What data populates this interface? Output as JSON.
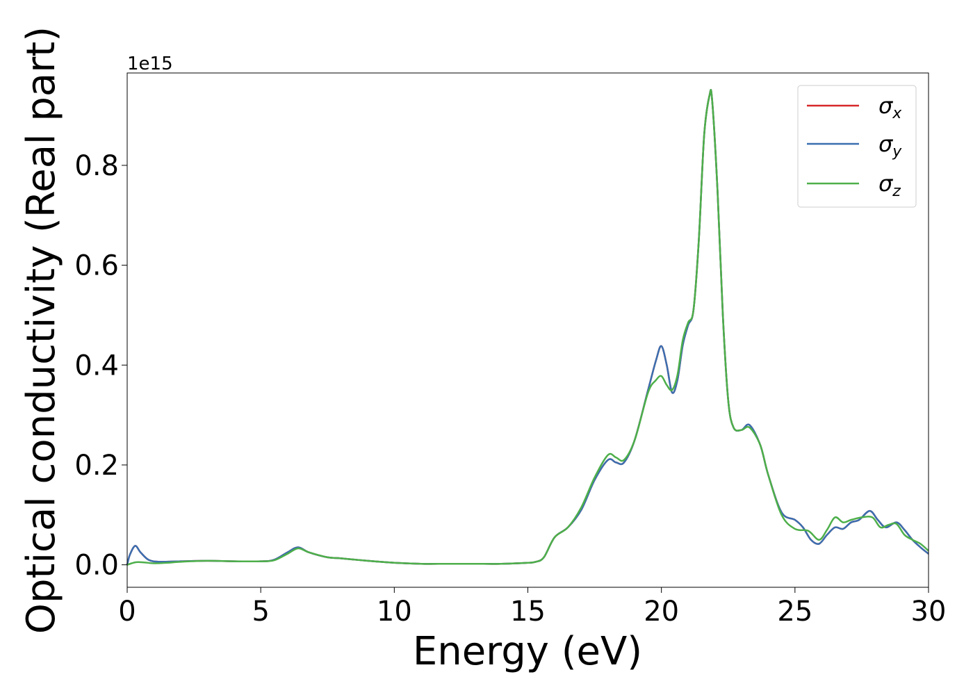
{
  "chart_data": {
    "type": "line",
    "title": "",
    "xlabel": "Energy (eV)",
    "ylabel": "Optical conductivity (Real part)",
    "y_multiplier_label": "1e15",
    "xlim": [
      0,
      30
    ],
    "ylim": [
      -0.045,
      0.985
    ],
    "xticks": [
      0,
      5,
      10,
      15,
      20,
      25,
      30
    ],
    "xtick_labels": [
      "0",
      "5",
      "10",
      "15",
      "20",
      "25",
      "30"
    ],
    "yticks": [
      0.0,
      0.2,
      0.4,
      0.6,
      0.8
    ],
    "ytick_labels": [
      "0.0",
      "0.2",
      "0.4",
      "0.6",
      "0.8"
    ],
    "grid": false,
    "legend_position": "top-right",
    "series": [
      {
        "name": "σx",
        "symbol": "σ",
        "subscript": "x",
        "color": "#d62728",
        "x": [
          0,
          0.1,
          0.3,
          0.5,
          0.8,
          1.2,
          2,
          3,
          4,
          5,
          5.5,
          6,
          6.4,
          6.8,
          7.5,
          8,
          9,
          10,
          11,
          12,
          13,
          14,
          15,
          15.3,
          15.6,
          16,
          16.5,
          17,
          17.5,
          18,
          18.3,
          18.6,
          19,
          19.5,
          19.8,
          20,
          20.2,
          20.4,
          20.6,
          20.8,
          21,
          21.2,
          21.4,
          21.6,
          21.8,
          21.9,
          22.1,
          22.3,
          22.5,
          22.7,
          23,
          23.3,
          23.7,
          24,
          24.5,
          25,
          25.3,
          25.6,
          25.9,
          26.2,
          26.5,
          26.8,
          27.1,
          27.4,
          27.8,
          28.1,
          28.4,
          28.8,
          29.1,
          29.4,
          29.7,
          30
        ],
        "values": [
          0.0,
          0.02,
          0.038,
          0.025,
          0.01,
          0.006,
          0.007,
          0.008,
          0.007,
          0.007,
          0.01,
          0.025,
          0.035,
          0.025,
          0.015,
          0.013,
          0.008,
          0.004,
          0.002,
          0.002,
          0.002,
          0.002,
          0.004,
          0.006,
          0.015,
          0.055,
          0.075,
          0.11,
          0.17,
          0.21,
          0.205,
          0.205,
          0.25,
          0.35,
          0.41,
          0.438,
          0.4,
          0.345,
          0.37,
          0.44,
          0.48,
          0.51,
          0.65,
          0.86,
          0.94,
          0.93,
          0.75,
          0.5,
          0.33,
          0.275,
          0.27,
          0.28,
          0.24,
          0.18,
          0.105,
          0.09,
          0.075,
          0.05,
          0.042,
          0.06,
          0.075,
          0.072,
          0.085,
          0.09,
          0.108,
          0.09,
          0.075,
          0.085,
          0.07,
          0.05,
          0.035,
          0.022
        ]
      },
      {
        "name": "σy",
        "symbol": "σ",
        "subscript": "y",
        "color": "#3a6fb0",
        "x": [
          0,
          0.1,
          0.3,
          0.5,
          0.8,
          1.2,
          2,
          3,
          4,
          5,
          5.5,
          6,
          6.4,
          6.8,
          7.5,
          8,
          9,
          10,
          11,
          12,
          13,
          14,
          15,
          15.3,
          15.6,
          16,
          16.5,
          17,
          17.5,
          18,
          18.3,
          18.6,
          19,
          19.5,
          19.8,
          20,
          20.2,
          20.4,
          20.6,
          20.8,
          21,
          21.2,
          21.4,
          21.6,
          21.8,
          21.9,
          22.1,
          22.3,
          22.5,
          22.7,
          23,
          23.3,
          23.7,
          24,
          24.5,
          25,
          25.3,
          25.6,
          25.9,
          26.2,
          26.5,
          26.8,
          27.1,
          27.4,
          27.8,
          28.1,
          28.4,
          28.8,
          29.1,
          29.4,
          29.7,
          30
        ],
        "values": [
          0.0,
          0.02,
          0.038,
          0.025,
          0.01,
          0.006,
          0.007,
          0.008,
          0.007,
          0.007,
          0.01,
          0.025,
          0.035,
          0.025,
          0.015,
          0.013,
          0.008,
          0.004,
          0.002,
          0.002,
          0.002,
          0.002,
          0.004,
          0.006,
          0.015,
          0.055,
          0.075,
          0.11,
          0.17,
          0.21,
          0.205,
          0.205,
          0.25,
          0.35,
          0.41,
          0.438,
          0.4,
          0.345,
          0.37,
          0.44,
          0.48,
          0.51,
          0.65,
          0.86,
          0.94,
          0.93,
          0.75,
          0.5,
          0.33,
          0.275,
          0.27,
          0.28,
          0.24,
          0.18,
          0.105,
          0.09,
          0.075,
          0.05,
          0.042,
          0.06,
          0.075,
          0.072,
          0.085,
          0.09,
          0.108,
          0.09,
          0.075,
          0.085,
          0.07,
          0.05,
          0.035,
          0.022
        ]
      },
      {
        "name": "σz",
        "symbol": "σ",
        "subscript": "z",
        "color": "#4daf4a",
        "x": [
          0,
          0.3,
          0.6,
          1,
          1.5,
          2,
          3,
          4,
          5,
          5.5,
          6,
          6.4,
          6.8,
          7.5,
          8,
          9,
          10,
          11,
          12,
          13,
          14,
          15,
          15.3,
          15.6,
          16,
          16.5,
          17,
          17.5,
          18,
          18.3,
          18.6,
          19,
          19.5,
          19.8,
          20,
          20.2,
          20.4,
          20.6,
          20.8,
          21,
          21.2,
          21.4,
          21.6,
          21.8,
          21.9,
          22.1,
          22.3,
          22.5,
          22.7,
          23,
          23.3,
          23.7,
          24,
          24.5,
          25,
          25.5,
          25.9,
          26.2,
          26.5,
          26.8,
          27.1,
          27.5,
          27.9,
          28.2,
          28.5,
          28.8,
          29.1,
          29.4,
          29.7,
          30
        ],
        "values": [
          0.0,
          0.005,
          0.005,
          0.003,
          0.004,
          0.006,
          0.008,
          0.007,
          0.007,
          0.009,
          0.022,
          0.033,
          0.025,
          0.015,
          0.013,
          0.008,
          0.004,
          0.002,
          0.002,
          0.002,
          0.002,
          0.004,
          0.006,
          0.015,
          0.055,
          0.075,
          0.115,
          0.175,
          0.22,
          0.215,
          0.21,
          0.25,
          0.345,
          0.37,
          0.378,
          0.36,
          0.35,
          0.38,
          0.45,
          0.485,
          0.51,
          0.65,
          0.86,
          0.94,
          0.93,
          0.75,
          0.5,
          0.33,
          0.275,
          0.27,
          0.275,
          0.24,
          0.18,
          0.1,
          0.072,
          0.068,
          0.05,
          0.07,
          0.095,
          0.085,
          0.09,
          0.095,
          0.095,
          0.075,
          0.08,
          0.082,
          0.06,
          0.05,
          0.042,
          0.028
        ]
      }
    ]
  }
}
